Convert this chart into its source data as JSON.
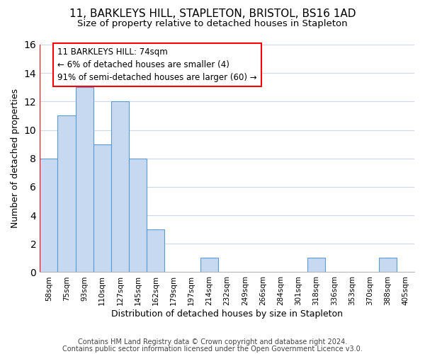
{
  "title": "11, BARKLEYS HILL, STAPLETON, BRISTOL, BS16 1AD",
  "subtitle": "Size of property relative to detached houses in Stapleton",
  "xlabel": "Distribution of detached houses by size in Stapleton",
  "ylabel": "Number of detached properties",
  "bar_labels": [
    "58sqm",
    "75sqm",
    "93sqm",
    "110sqm",
    "127sqm",
    "145sqm",
    "162sqm",
    "179sqm",
    "197sqm",
    "214sqm",
    "232sqm",
    "249sqm",
    "266sqm",
    "284sqm",
    "301sqm",
    "318sqm",
    "336sqm",
    "353sqm",
    "370sqm",
    "388sqm",
    "405sqm"
  ],
  "bar_values": [
    8,
    11,
    13,
    9,
    12,
    8,
    3,
    0,
    0,
    1,
    0,
    0,
    0,
    0,
    0,
    1,
    0,
    0,
    0,
    1,
    0
  ],
  "bar_color": "#c6d9f0",
  "bar_edge_color": "#5b9bd5",
  "annotation_box_text": "11 BARKLEYS HILL: 74sqm\n← 6% of detached houses are smaller (4)\n91% of semi-detached houses are larger (60) →",
  "annotation_fontsize": 8.5,
  "ylim": [
    0,
    16
  ],
  "yticks": [
    0,
    2,
    4,
    6,
    8,
    10,
    12,
    14,
    16
  ],
  "background_color": "#ffffff",
  "grid_color": "#d0d8e8",
  "footer_line1": "Contains HM Land Registry data © Crown copyright and database right 2024.",
  "footer_line2": "Contains public sector information licensed under the Open Government Licence v3.0.",
  "title_fontsize": 11,
  "subtitle_fontsize": 9.5,
  "xlabel_fontsize": 9,
  "ylabel_fontsize": 9,
  "tick_fontsize": 7.5,
  "footer_fontsize": 7
}
